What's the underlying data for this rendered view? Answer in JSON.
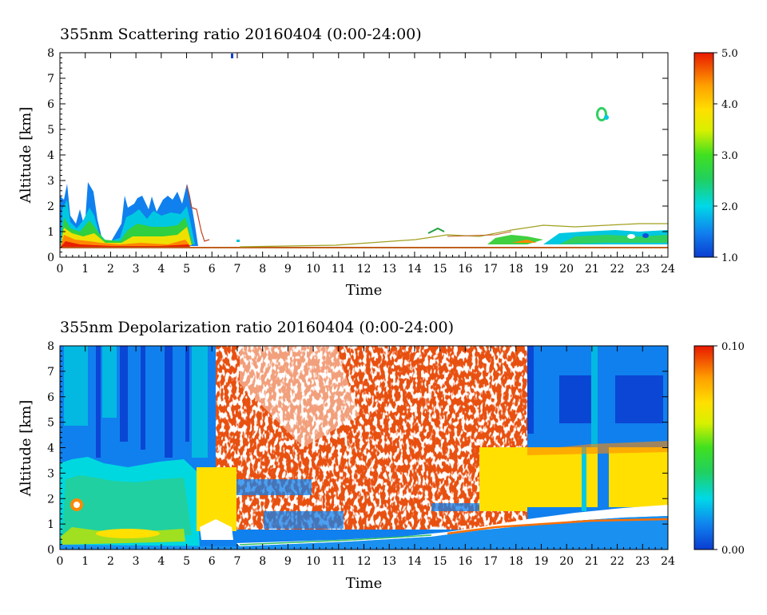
{
  "chart_data": [
    {
      "type": "heatmap",
      "title": "355nm Scattering ratio  20160404 (0:00-24:00)",
      "xlabel": "Time",
      "ylabel": "Altitude [km]",
      "xlim": [
        0,
        24
      ],
      "ylim": [
        0,
        8
      ],
      "x_ticks": [
        "0",
        "1",
        "2",
        "3",
        "4",
        "5",
        "6",
        "7",
        "8",
        "9",
        "10",
        "11",
        "12",
        "13",
        "14",
        "15",
        "16",
        "17",
        "18",
        "19",
        "20",
        "21",
        "22",
        "23",
        "24"
      ],
      "y_ticks": [
        "0",
        "1",
        "2",
        "3",
        "4",
        "5",
        "6",
        "7",
        "8"
      ],
      "colorbar": {
        "range": [
          1.0,
          5.0
        ],
        "tick_labels": [
          "1.0",
          "2.0",
          "3.0",
          "4.0",
          "5.0"
        ],
        "tick_values": [
          1.0,
          2.0,
          3.0,
          4.0,
          5.0
        ]
      },
      "features": [
        {
          "x0": 0.0,
          "x1": 5.3,
          "y0": 0.3,
          "y1": 3.0,
          "value": 2.2
        },
        {
          "x0": 0.0,
          "x1": 5.3,
          "y0": 0.4,
          "y1": 1.0,
          "value": 4.5
        },
        {
          "x0": 6.9,
          "x1": 6.9,
          "y0": 7.9,
          "y1": 7.9,
          "value": 1.2
        },
        {
          "x0": 21.3,
          "x1": 21.3,
          "y0": 5.6,
          "y1": 5.6,
          "value": 2.5
        },
        {
          "x0": 14.0,
          "x1": 24.0,
          "y0": 0.4,
          "y1": 1.2,
          "value": 3.0
        }
      ]
    },
    {
      "type": "heatmap",
      "title": "355nm Depolarization ratio  20160404 (0:00-24:00)",
      "xlabel": "Time",
      "ylabel": "Altitude [km]",
      "xlim": [
        0,
        24
      ],
      "ylim": [
        0,
        8
      ],
      "x_ticks": [
        "0",
        "1",
        "2",
        "3",
        "4",
        "5",
        "6",
        "7",
        "8",
        "9",
        "10",
        "11",
        "12",
        "13",
        "14",
        "15",
        "16",
        "17",
        "18",
        "19",
        "20",
        "21",
        "22",
        "23",
        "24"
      ],
      "y_ticks": [
        "0",
        "1",
        "2",
        "3",
        "4",
        "5",
        "6",
        "7",
        "8"
      ],
      "colorbar": {
        "range": [
          0.0,
          0.1
        ],
        "tick_labels": [
          "0.00",
          "0.10"
        ],
        "tick_values": [
          0.0,
          0.1
        ]
      },
      "features": [
        {
          "x0": 0.0,
          "x1": 5.3,
          "y0": 0.0,
          "y1": 3.5,
          "value": 0.035
        },
        {
          "x0": 5.5,
          "x1": 18.2,
          "y0": 1.0,
          "y1": 8.0,
          "value": 0.1
        },
        {
          "x0": 18.2,
          "x1": 24.0,
          "y0": 1.6,
          "y1": 4.0,
          "value": 0.065
        },
        {
          "x0": 18.2,
          "x1": 24.0,
          "y0": 4.0,
          "y1": 8.0,
          "value": 0.01
        },
        {
          "x0": 0.0,
          "x1": 24.0,
          "y0": 0.0,
          "y1": 1.0,
          "value": 0.012
        }
      ]
    }
  ]
}
